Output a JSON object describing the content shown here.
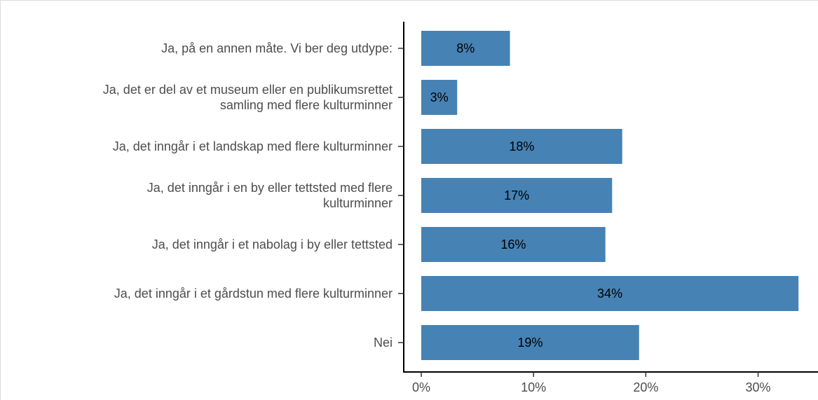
{
  "chart_data": {
    "type": "bar",
    "orientation": "horizontal",
    "categories": [
      "Ja, på en annen måte. Vi ber deg utdype:",
      "Ja, det er del av et museum eller en publikumsrettet\nsamling med flere kulturminner",
      "Ja, det inngår i et landskap med flere kulturminner",
      "Ja, det inngår i en by eller tettsted med flere\nkulturminner",
      "Ja, det inngår i et nabolag i by eller tettsted",
      "Ja, det inngår i et gårdstun med flere kulturminner",
      "Nei"
    ],
    "values": [
      7.9,
      3.2,
      17.9,
      17.0,
      16.4,
      33.6,
      19.4
    ],
    "value_labels": [
      "8%",
      "3%",
      "18%",
      "17%",
      "16%",
      "34%",
      "19%"
    ],
    "color": "#4682b4",
    "xlim": [
      -1.56,
      35.4
    ],
    "xticks": [
      {
        "value": 0,
        "label": "0%"
      },
      {
        "value": 10,
        "label": "10%"
      },
      {
        "value": 20,
        "label": "20%"
      },
      {
        "value": 30,
        "label": "30%"
      }
    ],
    "grid": false
  }
}
